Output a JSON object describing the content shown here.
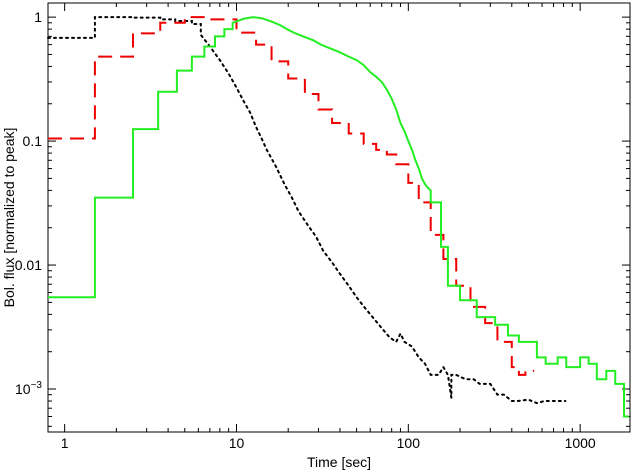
{
  "chart_data": {
    "type": "line",
    "title": "",
    "xlabel": "Time [sec]",
    "ylabel": "Bol. flux [normalized to peak]",
    "xscale": "log",
    "yscale": "log",
    "xlim": [
      0.8,
      1950
    ],
    "ylim": [
      0.00045,
      1.3
    ],
    "grid": false,
    "x_ticks": [
      {
        "value": 1,
        "label": "1"
      },
      {
        "value": 10,
        "label": "10"
      },
      {
        "value": 100,
        "label": "100"
      },
      {
        "value": 1000,
        "label": "1000"
      }
    ],
    "y_ticks": [
      {
        "value": 1,
        "label": "1",
        "exp": ""
      },
      {
        "value": 0.1,
        "label": "0.1",
        "exp": ""
      },
      {
        "value": 0.01,
        "label": "0.01",
        "exp": ""
      },
      {
        "value": 0.001,
        "label": "10",
        "exp": "−3"
      }
    ],
    "series": [
      {
        "color": "#000000",
        "style": "dotted",
        "x": [
          0.8,
          1.5,
          1.5,
          2.5,
          2.5,
          3.6,
          3.6,
          4.4,
          4.4,
          5.5,
          5.5,
          6.2,
          6.2,
          7,
          8,
          9,
          10,
          11,
          12,
          13,
          14,
          15,
          17,
          19,
          21,
          23,
          26,
          29,
          32,
          36,
          40,
          45,
          50,
          56,
          62,
          70,
          78,
          85,
          90,
          95,
          105,
          115,
          125,
          135,
          150,
          160,
          170,
          178,
          178,
          190,
          215,
          240,
          260,
          300,
          330,
          360,
          400,
          430,
          500,
          560,
          620,
          820
        ],
        "y": [
          0.68,
          0.68,
          1.0,
          1.0,
          0.99,
          0.99,
          0.96,
          0.96,
          0.93,
          0.93,
          0.88,
          0.88,
          0.72,
          0.58,
          0.45,
          0.35,
          0.27,
          0.21,
          0.17,
          0.13,
          0.105,
          0.085,
          0.062,
          0.045,
          0.035,
          0.027,
          0.021,
          0.017,
          0.013,
          0.0105,
          0.0085,
          0.0068,
          0.0055,
          0.0045,
          0.0038,
          0.0031,
          0.0026,
          0.0024,
          0.0028,
          0.0024,
          0.0022,
          0.0018,
          0.0016,
          0.0013,
          0.0013,
          0.0015,
          0.0013,
          0.00085,
          0.0013,
          0.0013,
          0.0012,
          0.0012,
          0.0011,
          0.0011,
          0.0009,
          0.0009,
          0.0008,
          0.0008,
          0.00082,
          0.00077,
          0.0008,
          0.0008
        ]
      },
      {
        "color": "#ee0000",
        "style": "dashed",
        "x": [
          0.8,
          1.5,
          1.5,
          2.5,
          2.5,
          3.6,
          3.6,
          5,
          5,
          7,
          7,
          10,
          10,
          13,
          13,
          16,
          16,
          20,
          20,
          25,
          25,
          30,
          30,
          36,
          36,
          45,
          45,
          55,
          55,
          65,
          65,
          75,
          75,
          85,
          85,
          100,
          100,
          115,
          115,
          135,
          135,
          160,
          160,
          190,
          190,
          230,
          230,
          280,
          280,
          330,
          330,
          400,
          400,
          440,
          440,
          480,
          480,
          540
        ],
        "y": [
          0.105,
          0.105,
          0.48,
          0.48,
          0.74,
          0.74,
          0.9,
          0.9,
          1.0,
          1.0,
          0.96,
          0.96,
          0.75,
          0.75,
          0.6,
          0.6,
          0.44,
          0.44,
          0.32,
          0.32,
          0.24,
          0.24,
          0.18,
          0.18,
          0.14,
          0.14,
          0.115,
          0.115,
          0.095,
          0.095,
          0.085,
          0.085,
          0.078,
          0.078,
          0.065,
          0.065,
          0.046,
          0.046,
          0.032,
          0.032,
          0.0175,
          0.0175,
          0.0112,
          0.0112,
          0.0068,
          0.0068,
          0.0046,
          0.0046,
          0.0034,
          0.0034,
          0.0024,
          0.0024,
          0.0015,
          0.0015,
          0.0013,
          0.0013,
          0.0014,
          0.0014
        ]
      },
      {
        "color": "#22ee22",
        "style": "solid",
        "x": [
          0.8,
          1.5,
          1.5,
          2.5,
          2.5,
          3.5,
          3.5,
          4.5,
          4.5,
          5.5,
          5.5,
          6.5,
          6.5,
          7.5,
          7.5,
          8.5,
          8.5,
          9.5,
          9.5,
          11,
          12.5,
          14,
          16,
          18,
          20,
          22,
          25,
          28,
          31,
          35,
          40,
          45,
          50,
          55,
          60,
          65,
          70,
          75,
          80,
          85,
          90,
          95,
          100,
          105,
          110,
          115,
          120,
          125,
          130,
          135,
          135,
          155,
          155,
          170,
          170,
          200,
          200,
          250,
          250,
          320,
          320,
          380,
          380,
          440,
          440,
          560,
          560,
          630,
          630,
          740,
          740,
          830,
          830,
          1000,
          1000,
          1120,
          1120,
          1250,
          1250,
          1420,
          1420,
          1600,
          1600,
          1800,
          1800,
          1920
        ],
        "y": [
          0.0055,
          0.0055,
          0.035,
          0.035,
          0.125,
          0.125,
          0.25,
          0.25,
          0.37,
          0.37,
          0.48,
          0.48,
          0.58,
          0.58,
          0.7,
          0.7,
          0.8,
          0.8,
          0.9,
          0.97,
          1.0,
          0.98,
          0.92,
          0.86,
          0.79,
          0.74,
          0.69,
          0.65,
          0.6,
          0.56,
          0.52,
          0.48,
          0.45,
          0.41,
          0.36,
          0.33,
          0.3,
          0.26,
          0.22,
          0.18,
          0.14,
          0.12,
          0.1,
          0.085,
          0.07,
          0.06,
          0.05,
          0.045,
          0.042,
          0.04,
          0.032,
          0.032,
          0.014,
          0.014,
          0.0068,
          0.0068,
          0.0052,
          0.0052,
          0.0038,
          0.0038,
          0.0033,
          0.0033,
          0.0027,
          0.0027,
          0.0024,
          0.0024,
          0.0018,
          0.0018,
          0.0016,
          0.0016,
          0.0018,
          0.0018,
          0.0015,
          0.0015,
          0.0018,
          0.0018,
          0.0016,
          0.0016,
          0.0012,
          0.0012,
          0.0014,
          0.0014,
          0.0011,
          0.0011,
          0.0006,
          0.0006
        ]
      }
    ]
  }
}
